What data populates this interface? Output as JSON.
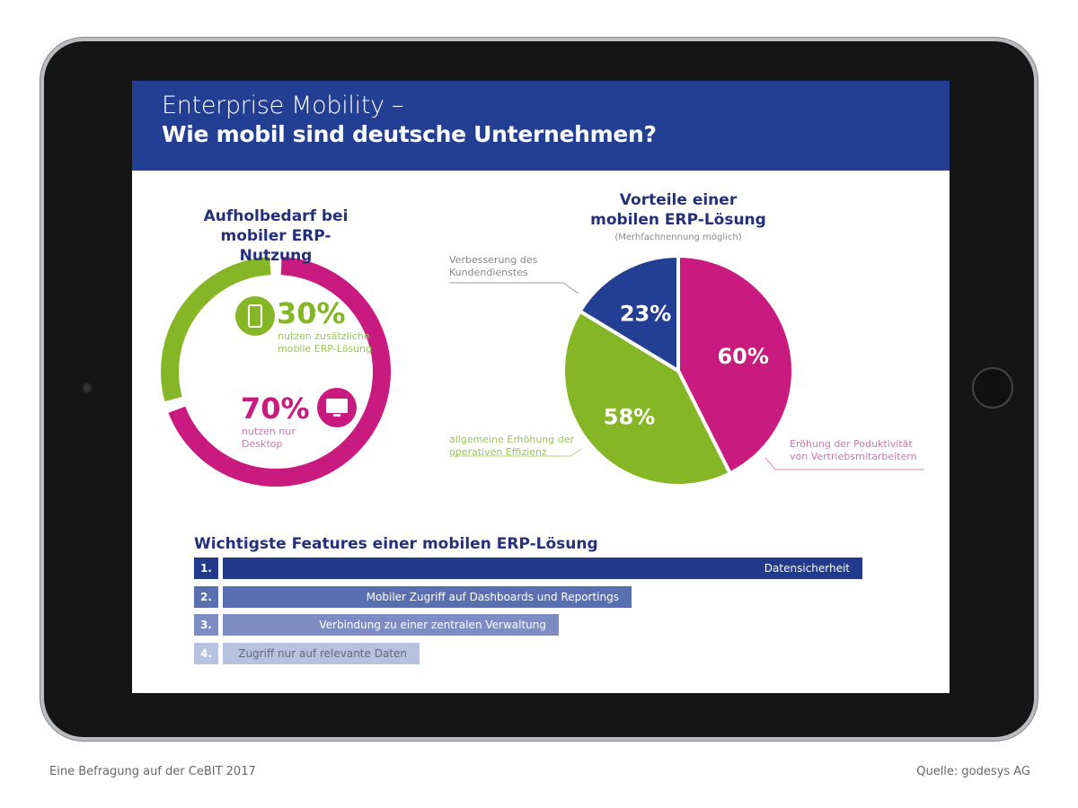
{
  "header": {
    "title": "Enterprise Mobility –",
    "subtitle": "Wie mobil sind deutsche Unternehmen?"
  },
  "colors": {
    "blue": "#233f93",
    "green": "#84b626",
    "magenta": "#c81a7f"
  },
  "chart_data": [
    {
      "type": "pie",
      "variant": "donut",
      "title": "Aufholbedarf bei mobiler ERP-Nutzung",
      "slices": [
        {
          "value": 30,
          "label": "30%",
          "description": "nutzen zusätzliche mobile ERP-Lösung",
          "icon": "smartphone-icon",
          "color": "#84b626"
        },
        {
          "value": 70,
          "label": "70%",
          "description": "nutzen nur Desktop",
          "icon": "monitor-icon",
          "color": "#c81a7f"
        }
      ]
    },
    {
      "type": "pie",
      "title": "Vorteile einer mobilen ERP-Lösung",
      "subtitle": "(Merhfachnennung möglich)",
      "slices": [
        {
          "value": 60,
          "label": "60%",
          "description": "Eröhung der Poduktivität von Vertriebsmitarbeitern",
          "color": "#c81a7f"
        },
        {
          "value": 58,
          "label": "58%",
          "description": "allgemeine Erhöhung der operativen Effizienz",
          "color": "#84b626"
        },
        {
          "value": 23,
          "label": "23%",
          "description": "Verbesserung des Kundendienstes",
          "color": "#233f93"
        }
      ]
    },
    {
      "type": "bar",
      "orientation": "horizontal",
      "title": "Wichtigste Features einer mobilen ERP-Lösung",
      "categories": [
        "Datensicherheit",
        "Mobiler Zugriff auf Dashboards und Reportings",
        "Verbindung zu einer zentralen Verwaltung",
        "Zugriff nur auf relevante Daten"
      ],
      "ranks": [
        "1.",
        "2.",
        "3.",
        "4."
      ],
      "colors": [
        "#213a8c",
        "#5a6fb0",
        "#7d8cc2",
        "#b7c1e0"
      ]
    }
  ],
  "footer": {
    "left": "Eine Befragung auf der CeBIT 2017",
    "right": "Quelle: godesys AG"
  }
}
